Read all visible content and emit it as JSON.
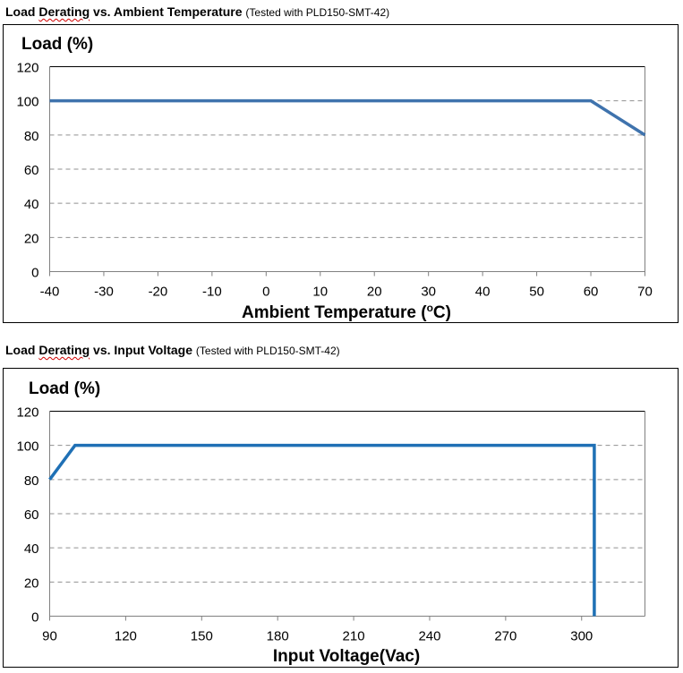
{
  "sections": [
    {
      "title_bold_1": "Load",
      "title_bold_2": "Derating",
      "title_bold_3": "vs. Ambient  Temperature",
      "title_sub": "(Tested  with  PLD150-SMT-42)"
    },
    {
      "title_bold_1": "Load",
      "title_bold_2": "Derating",
      "title_bold_3": "vs. Input Voltage",
      "title_sub": "(Tested  with  PLD150-SMT-42)"
    }
  ],
  "chart_data": [
    {
      "type": "line",
      "title": "",
      "ylabel": "Load (%)",
      "xlabel": "Ambient Temperature (",
      "xlabel_sup": "o",
      "xlabel_tail": "C)",
      "xlim": [
        -40,
        70
      ],
      "ylim": [
        0,
        120
      ],
      "xticks": [
        "-40",
        "-30",
        "-20",
        "-10",
        "0",
        "10",
        "20",
        "30",
        "40",
        "50",
        "60",
        "70"
      ],
      "yticks": [
        "0",
        "20",
        "40",
        "60",
        "80",
        "100",
        "120"
      ],
      "grid": "horizontal-dashed",
      "line_color": "#3f73ad",
      "x": [
        -40,
        60,
        70
      ],
      "y": [
        100,
        100,
        80
      ]
    },
    {
      "type": "line",
      "title": "",
      "ylabel": "Load (%)",
      "xlabel": "Input Voltage(Vac)",
      "xlim": [
        90,
        325
      ],
      "ylim": [
        0,
        120
      ],
      "xticks": [
        "90",
        "120",
        "150",
        "180",
        "210",
        "240",
        "270",
        "300"
      ],
      "yticks": [
        "0",
        "20",
        "40",
        "60",
        "80",
        "100",
        "120"
      ],
      "grid": "horizontal-dashed",
      "line_color": "#1f70b5",
      "x": [
        90,
        100,
        305,
        305
      ],
      "y": [
        80,
        100,
        100,
        0
      ]
    }
  ]
}
